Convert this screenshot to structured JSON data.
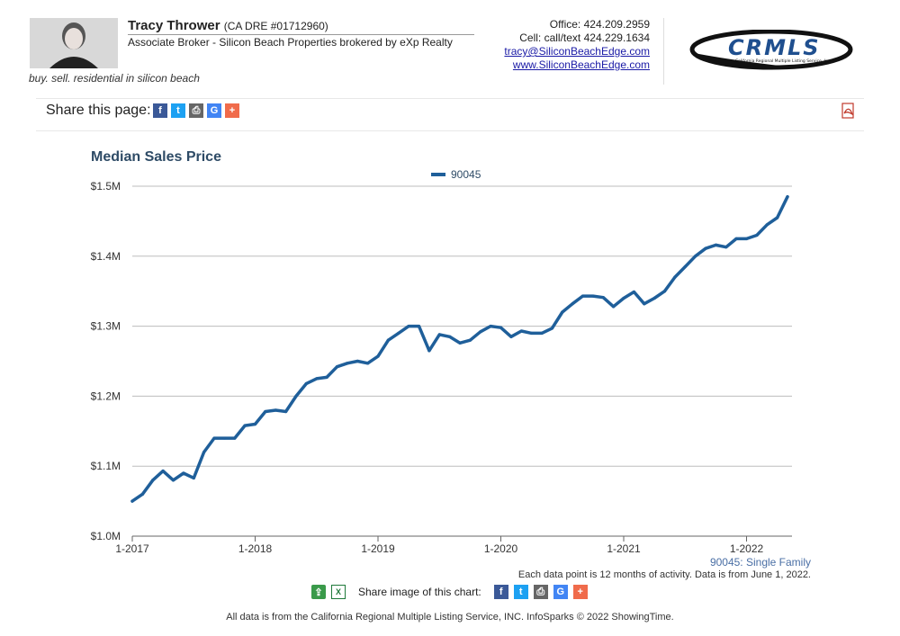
{
  "header": {
    "agent_name": "Tracy Thrower",
    "dre": "(CA DRE #01712960)",
    "role": "Associate Broker - Silicon Beach Properties brokered by eXp Realty",
    "tagline": "buy. sell. residential in silicon beach",
    "office": "Office: 424.209.2959",
    "cell": "Cell: call/text 424.229.1634",
    "email": "tracy@SiliconBeachEdge.com",
    "website": "www.SiliconBeachEdge.com",
    "logo_text": "CRMLS",
    "logo_subtext": "California Regional Multiple Listing Service, Inc.",
    "photo_icon": "person-photo"
  },
  "share_bar": {
    "label": "Share this page:",
    "icons": [
      "facebook-icon",
      "twitter-icon",
      "print-icon",
      "google-icon",
      "plus-icon"
    ],
    "pdf_icon": "pdf-icon"
  },
  "chart_data": {
    "type": "line",
    "title": "Median Sales Price",
    "series": [
      {
        "name": "90045",
        "color": "#1f5f9a",
        "values": [
          1050000,
          1060000,
          1080000,
          1093000,
          1080000,
          1090000,
          1083000,
          1120000,
          1140000,
          1140000,
          1140000,
          1158000,
          1160000,
          1178000,
          1180000,
          1178000,
          1200000,
          1218000,
          1225000,
          1227000,
          1242000,
          1247000,
          1250000,
          1247000,
          1257000,
          1280000,
          1290000,
          1300000,
          1300000,
          1265000,
          1288000,
          1285000,
          1276000,
          1280000,
          1292000,
          1300000,
          1298000,
          1285000,
          1293000,
          1290000,
          1290000,
          1297000,
          1320000,
          1332000,
          1343000,
          1343000,
          1341000,
          1328000,
          1340000,
          1349000,
          1332000,
          1340000,
          1350000,
          1370000,
          1385000,
          1400000,
          1411000,
          1416000,
          1413000,
          1425000,
          1425000,
          1430000,
          1445000,
          1455000,
          1485000
        ]
      }
    ],
    "x_start": "2017-01",
    "x_end": "2022-05",
    "x_tick_labels": [
      "1-2017",
      "1-2018",
      "1-2019",
      "1-2020",
      "1-2021",
      "1-2022"
    ],
    "y_tick_labels": [
      "$1.0M",
      "$1.1M",
      "$1.2M",
      "$1.3M",
      "$1.4M",
      "$1.5M"
    ],
    "ylim": [
      1000000,
      1500000
    ],
    "grid": true,
    "legend_position": "top-center",
    "xlabel": "",
    "ylabel": ""
  },
  "notes": {
    "subtitle": "90045: Single Family",
    "data_note": "Each data point is 12 months of activity. Data is from June 1, 2022."
  },
  "share_image": {
    "label": "Share image of this chart:",
    "icons": [
      "share-icon",
      "excel-icon",
      "facebook-icon",
      "twitter-icon",
      "print-icon",
      "google-icon",
      "plus-icon"
    ]
  },
  "footer": "All data is from the California Regional Multiple Listing Service, INC. InfoSparks © 2022 ShowingTime.",
  "colors": {
    "line": "#1f5f9a",
    "title": "#2e4b66",
    "grid": "#bdbdbd",
    "facebook": "#3b5998",
    "twitter": "#1da1f2",
    "print": "#666666",
    "google": "#4285f4",
    "plus": "#f06b4b"
  }
}
